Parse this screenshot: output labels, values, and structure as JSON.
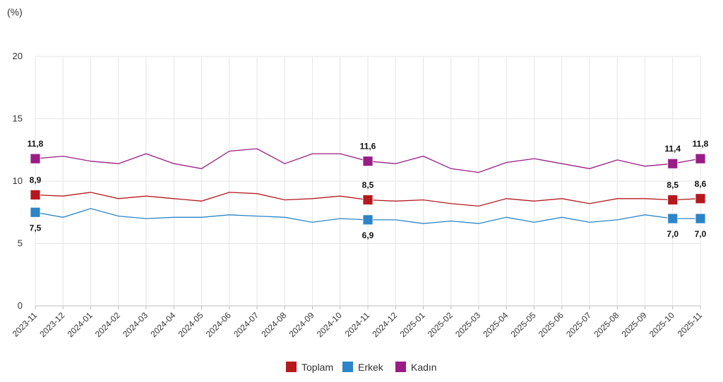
{
  "chart_data": {
    "type": "line",
    "unit_label": "(%)",
    "ylim": [
      0,
      20
    ],
    "yticks": [
      "0",
      "5",
      "10",
      "15",
      "20"
    ],
    "grid": true,
    "legend_position": "bottom-center",
    "categories": [
      "2023-11",
      "2023-12",
      "2024-01",
      "2024-02",
      "2024-03",
      "2024-04",
      "2024-05",
      "2024-06",
      "2024-07",
      "2024-08",
      "2024-09",
      "2024-10",
      "2024-11",
      "2024-12",
      "2025-01",
      "2025-02",
      "2025-03",
      "2025-04",
      "2025-05",
      "2025-06",
      "2025-07",
      "2025-08",
      "2025-09",
      "2025-10",
      "2025-11"
    ],
    "series": [
      {
        "name": "Toplam",
        "color": "#b5191e",
        "values": [
          8.9,
          8.8,
          9.1,
          8.6,
          8.8,
          8.6,
          8.4,
          9.1,
          9.0,
          8.5,
          8.6,
          8.8,
          8.5,
          8.4,
          8.5,
          8.2,
          8.0,
          8.6,
          8.4,
          8.6,
          8.2,
          8.6,
          8.6,
          8.5,
          8.6
        ],
        "markers": [
          {
            "index": 0,
            "label": "8,9",
            "pos": "above"
          },
          {
            "index": 12,
            "label": "8,5",
            "pos": "above"
          },
          {
            "index": 23,
            "label": "8,5",
            "pos": "above"
          },
          {
            "index": 24,
            "label": "8,6",
            "pos": "above"
          }
        ]
      },
      {
        "name": "Erkek",
        "color": "#2c85c8",
        "values": [
          7.5,
          7.1,
          7.8,
          7.2,
          7.0,
          7.1,
          7.1,
          7.3,
          7.2,
          7.1,
          6.7,
          7.0,
          6.9,
          6.9,
          6.6,
          6.8,
          6.6,
          7.1,
          6.7,
          7.1,
          6.7,
          6.9,
          7.3,
          7.0,
          7.0
        ],
        "markers": [
          {
            "index": 0,
            "label": "7,5",
            "pos": "below"
          },
          {
            "index": 12,
            "label": "6,9",
            "pos": "below"
          },
          {
            "index": 23,
            "label": "7,0",
            "pos": "below"
          },
          {
            "index": 24,
            "label": "7,0",
            "pos": "below"
          }
        ]
      },
      {
        "name": "Kadın",
        "color": "#9a1c86",
        "values": [
          11.8,
          12.0,
          11.6,
          11.4,
          12.2,
          11.4,
          11.0,
          12.4,
          12.6,
          11.4,
          12.2,
          12.2,
          11.6,
          11.4,
          12.0,
          11.0,
          10.7,
          11.5,
          11.8,
          11.4,
          11.0,
          11.7,
          11.2,
          11.4,
          11.8
        ],
        "markers": [
          {
            "index": 0,
            "label": "11,8",
            "pos": "above"
          },
          {
            "index": 12,
            "label": "11,6",
            "pos": "above"
          },
          {
            "index": 23,
            "label": "11,4",
            "pos": "above"
          },
          {
            "index": 24,
            "label": "11,8",
            "pos": "above"
          }
        ]
      }
    ]
  }
}
